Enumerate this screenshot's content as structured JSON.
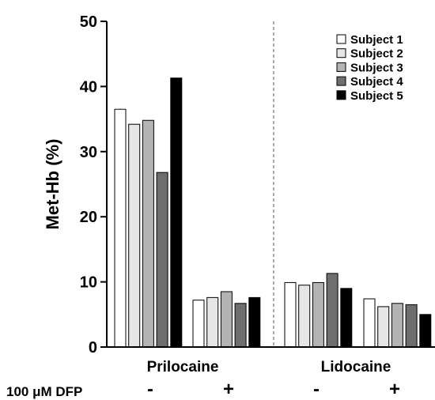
{
  "chart_data": {
    "type": "bar",
    "title": "",
    "xlabel": "",
    "ylabel": "Met-Hb (%)",
    "ylim": [
      0,
      50
    ],
    "yticks": [
      0,
      10,
      20,
      30,
      40,
      50
    ],
    "groups": [
      "Prilocaine",
      "Lidocaine"
    ],
    "condition_label": "100 μM DFP",
    "conditions": [
      "-",
      "+"
    ],
    "categories": [
      "Prilocaine -",
      "Prilocaine +",
      "Lidocaine -",
      "Lidocaine +"
    ],
    "series": [
      {
        "name": "Subject 1",
        "color": "#ffffff",
        "values": [
          36.5,
          7.2,
          9.9,
          7.4
        ]
      },
      {
        "name": "Subject 2",
        "color": "#e6e6e6",
        "values": [
          34.2,
          7.6,
          9.5,
          6.2
        ]
      },
      {
        "name": "Subject 3",
        "color": "#b3b3b3",
        "values": [
          34.8,
          8.5,
          9.9,
          6.7
        ]
      },
      {
        "name": "Subject 4",
        "color": "#6e6e6e",
        "values": [
          26.8,
          6.7,
          11.3,
          6.5
        ]
      },
      {
        "name": "Subject 5",
        "color": "#000000",
        "values": [
          41.3,
          7.6,
          9.0,
          5.0
        ]
      }
    ],
    "legend_position": "top-right",
    "grid": false
  }
}
